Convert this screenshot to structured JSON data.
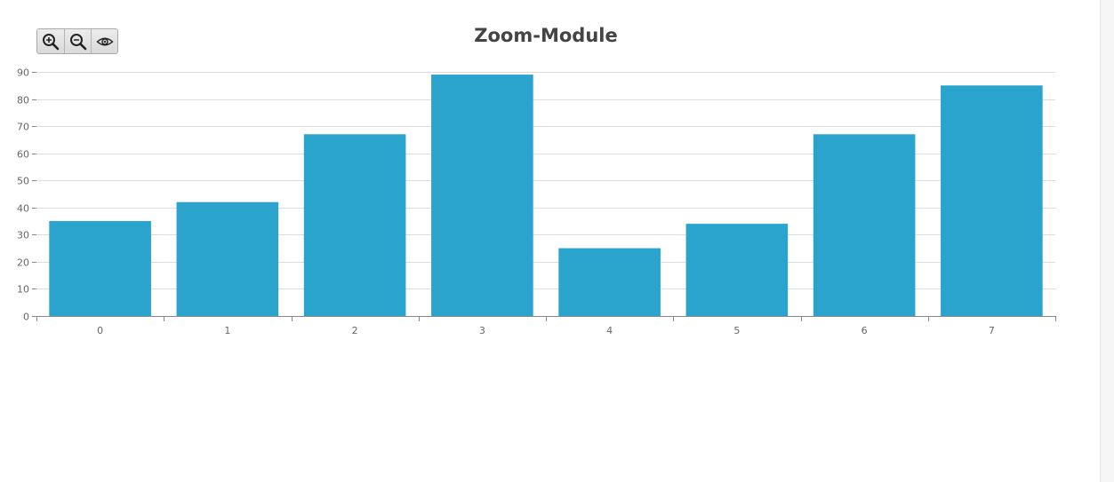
{
  "toolbar": {
    "buttons": [
      {
        "icon": "zoom-in-icon"
      },
      {
        "icon": "zoom-out-icon"
      },
      {
        "icon": "eye-icon"
      }
    ]
  },
  "colors": {
    "bar": "#2aa3cd",
    "grid": "#dcdcdc",
    "axis": "#888888",
    "title": "#444444"
  },
  "chart_data": {
    "type": "bar",
    "title": "Zoom-Module",
    "xlabel": "",
    "ylabel": "",
    "categories": [
      "0",
      "1",
      "2",
      "3",
      "4",
      "5",
      "6",
      "7"
    ],
    "values": [
      35,
      42,
      67,
      89,
      25,
      34,
      67,
      85
    ],
    "ylim": [
      0,
      90
    ],
    "yticks": [
      0,
      10,
      20,
      30,
      40,
      50,
      60,
      70,
      80,
      90
    ],
    "grid": true,
    "legend": "none"
  }
}
